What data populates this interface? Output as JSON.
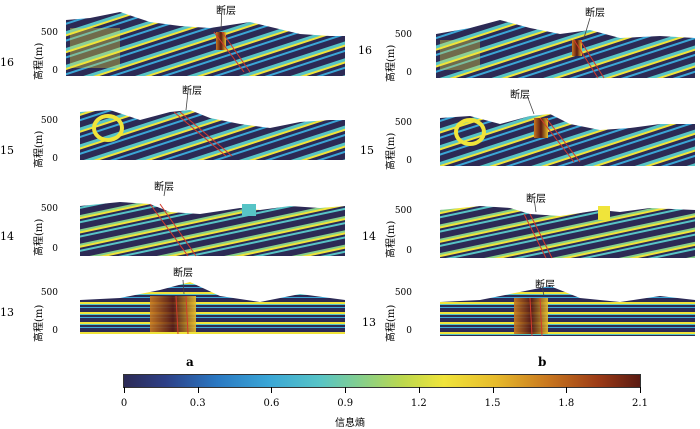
{
  "panels": [
    {
      "id": "a",
      "letter": "a",
      "sections": [
        {
          "line": "16",
          "ylabel": "高程(m)",
          "ticks": [
            "500",
            "0"
          ],
          "fault": "断层"
        },
        {
          "line": "15",
          "ylabel": "高程(m)",
          "ticks": [
            "500",
            "0"
          ],
          "fault": "断层"
        },
        {
          "line": "14",
          "ylabel": "高程(m)",
          "ticks": [
            "500",
            "0"
          ],
          "fault": "断层"
        },
        {
          "line": "13",
          "ylabel": "高程(m)",
          "ticks": [
            "500",
            "0"
          ],
          "fault": "断层"
        }
      ]
    },
    {
      "id": "b",
      "letter": "b",
      "sections": [
        {
          "line": "16",
          "ylabel": "高程(m)",
          "ticks": [
            "500",
            "0"
          ],
          "fault": "断层"
        },
        {
          "line": "15",
          "ylabel": "高程(m)",
          "ticks": [
            "500",
            "0"
          ],
          "fault": "断层"
        },
        {
          "line": "14",
          "ylabel": "高程(m)",
          "ticks": [
            "500",
            "0"
          ],
          "fault": "断层"
        },
        {
          "line": "13",
          "ylabel": "高程(m)",
          "ticks": [
            "500",
            "0"
          ],
          "fault": "断层"
        }
      ]
    }
  ],
  "colorbar": {
    "ticks": [
      "0",
      "0.3",
      "0.6",
      "0.9",
      "1.2",
      "1.5",
      "1.8",
      "2.1"
    ],
    "label": "信息熵"
  },
  "colors": {
    "background_dark": "#2c2a55",
    "layer_light": "#f0e43a",
    "layer_cyan": "#57c4c6",
    "fault_high": "#9b3a16",
    "fault_line": "#d33a2c"
  }
}
